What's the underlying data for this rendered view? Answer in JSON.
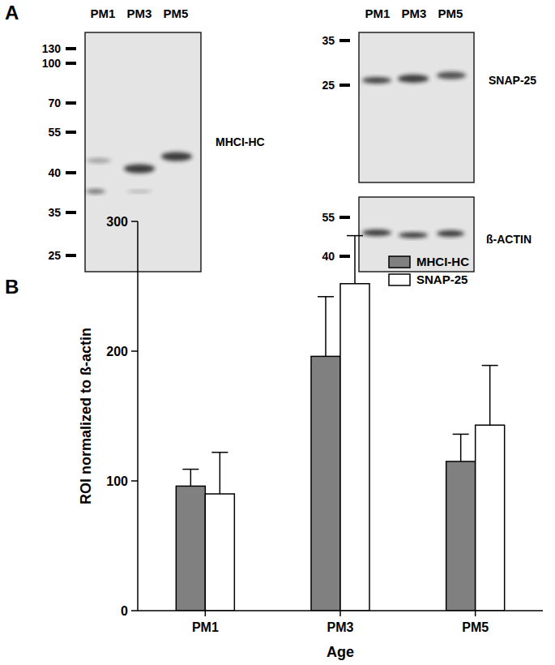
{
  "panel_labels": [
    "A",
    "B"
  ],
  "blots": [
    {
      "lanes": [
        "PM1",
        "PM3",
        "PM5"
      ],
      "markers": [
        130,
        100,
        70,
        55,
        40,
        35,
        25
      ],
      "band_label": "MHCI-HC"
    },
    {
      "lanes": [
        "PM1",
        "PM3",
        "PM5"
      ],
      "markers": [
        35,
        25
      ],
      "band_label": "SNAP-25"
    },
    {
      "lanes": [],
      "markers": [
        55,
        40
      ],
      "band_label": "ß-ACTIN"
    }
  ],
  "chart_data": {
    "type": "bar",
    "x_label": "Age",
    "y_label": "ROI normalized to ß-actin",
    "categories": [
      "PM1",
      "PM3",
      "PM5"
    ],
    "series": [
      {
        "name": "MHCI-HC",
        "color": "#808080",
        "values": [
          96,
          196,
          115
        ],
        "errors": [
          13,
          46,
          21
        ]
      },
      {
        "name": "SNAP-25",
        "color": "#ffffff",
        "values": [
          90,
          252,
          143
        ],
        "errors": [
          32,
          37,
          46
        ]
      }
    ],
    "ylim": [
      0,
      300
    ],
    "yticks": [
      0,
      100,
      200,
      300
    ],
    "grid": false,
    "legend": "top-right"
  }
}
